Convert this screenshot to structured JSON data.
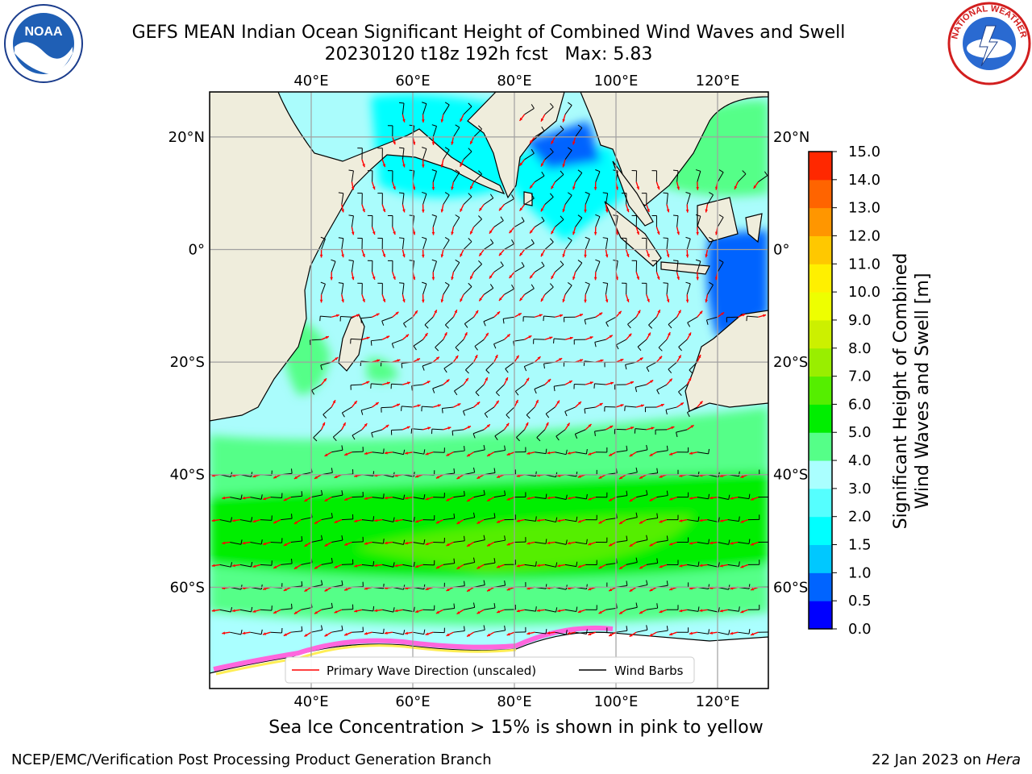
{
  "header": {
    "title_line1": "GEFS MEAN Indian Ocean Significant Height of Combined Wind Waves and Swell",
    "title_line2": "20230120 t18z 192h fcst   Max: 5.83"
  },
  "logos": {
    "left": {
      "name": "noaa-logo",
      "text": "NOAA"
    },
    "right": {
      "name": "nws-logo",
      "text": "NATIONAL WEATHER SERVICE"
    }
  },
  "map": {
    "lon_labels": [
      "40°E",
      "60°E",
      "80°E",
      "100°E",
      "120°E"
    ],
    "lat_labels": [
      "20°N",
      "0°",
      "20°S",
      "40°S",
      "60°S"
    ],
    "lon_values": [
      40,
      60,
      80,
      100,
      120
    ],
    "lat_values": [
      20,
      0,
      -20,
      -40,
      -60
    ],
    "lon_range": [
      20,
      130
    ],
    "lat_range": [
      -78,
      28
    ],
    "ocean_color": "#aafcfc",
    "land_color": "#efeddc",
    "wave_arrow_color": "#ff0000",
    "wind_barb_color": "#000000",
    "grid": true
  },
  "legend": {
    "wave_direction": "Primary Wave Direction (unscaled)",
    "wind_barbs": "Wind Barbs"
  },
  "colorbar": {
    "label_line1": "Significant Height of Combined",
    "label_line2": "Wind Waves and Swell [m]",
    "ticks": [
      "0.0",
      "0.5",
      "1.0",
      "1.5",
      "2.0",
      "3.0",
      "4.0",
      "5.0",
      "6.0",
      "7.0",
      "8.0",
      "9.0",
      "10.0",
      "11.0",
      "12.0",
      "13.0",
      "14.0",
      "15.0"
    ],
    "colors": [
      "#0000ff",
      "#0064ff",
      "#00c8ff",
      "#00ffff",
      "#55ffff",
      "#aaffff",
      "#55ff88",
      "#00ee00",
      "#55ee00",
      "#99ee00",
      "#ccf000",
      "#eeff00",
      "#fff000",
      "#ffc800",
      "#ff9600",
      "#ff6400",
      "#ff2800"
    ]
  },
  "footer": {
    "sea_ice_note": "Sea Ice Concentration > 15% is shown in pink to yellow",
    "left": "NCEP/EMC/Verification Post Processing Product Generation Branch",
    "right_prefix": "22 Jan 2023 on ",
    "right_host": "Hera"
  }
}
